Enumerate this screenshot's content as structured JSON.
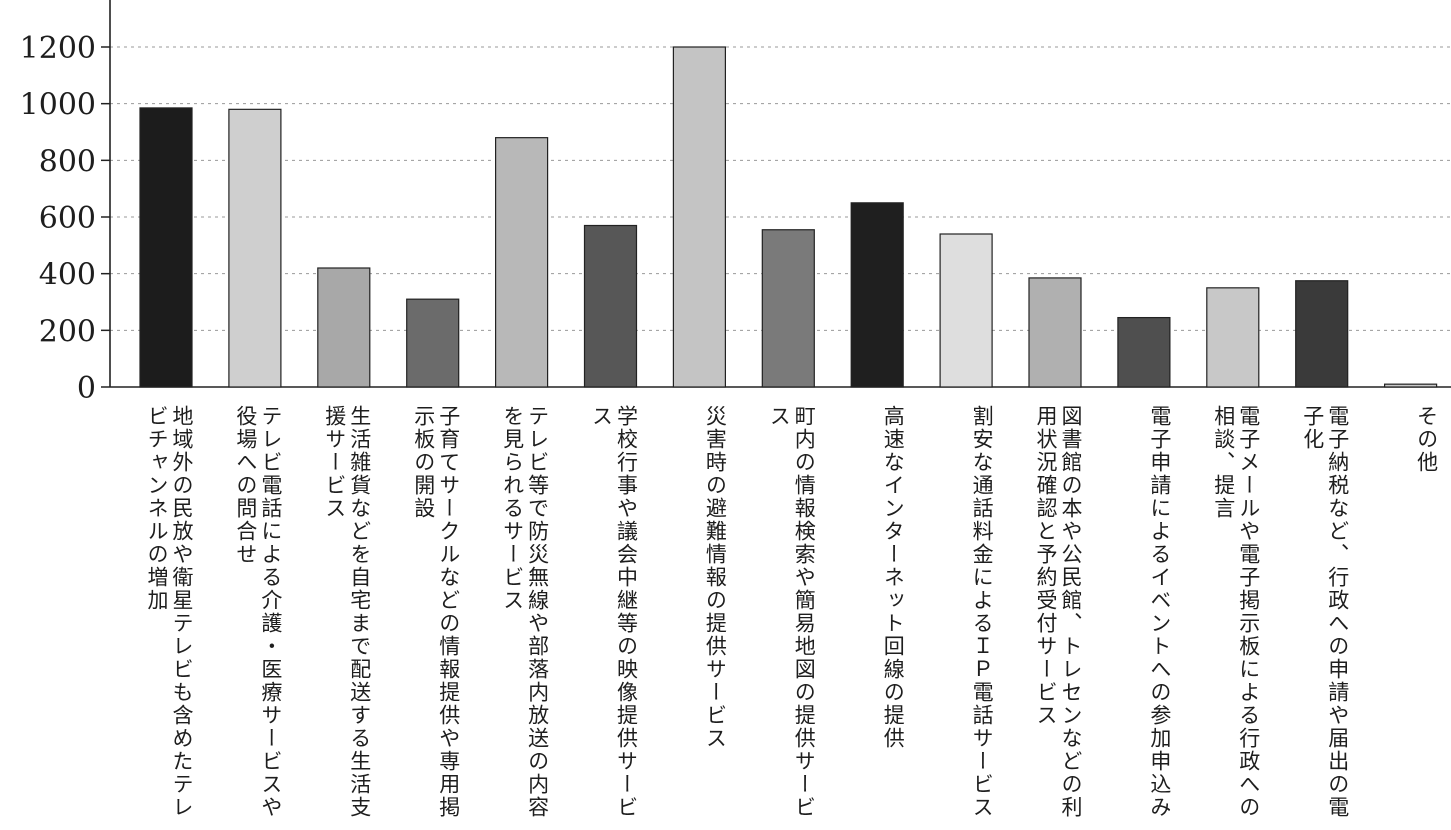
{
  "chart_data": {
    "type": "bar",
    "title": "",
    "xlabel": "",
    "ylabel": "",
    "ylim": [
      0,
      1200
    ],
    "yticks": [
      0,
      200,
      400,
      600,
      800,
      1000,
      1200
    ],
    "grid": true,
    "categories": [
      "地域外の民放や衛星テレビも含めたテレビチャンネルの増加",
      "テレビ電話による介護・医療サービスや役場への問合せ",
      "生活雑貨などを自宅まで配送する生活支援サービス",
      "子育てサークルなどの情報提供や専用掲示板の開設",
      "テレビ等で防災無線や部落内放送の内容を見られるサービス",
      "学校行事や議会中継等の映像提供サービス",
      "災害時の避難情報の提供サービス",
      "町内の情報検索や簡易地図の提供サービス",
      "高速なインターネット回線の提供",
      "割安な通話料金によるＩＰ電話サービス",
      "図書館の本や公民館、トレセンなどの利用状況確認と予約受付サービス",
      "電子申請によるイベントへの参加申込み",
      "電子メールや電子掲示板による行政への相談、提言",
      "電子納税など、行政への申請や届出の電子化",
      "その他"
    ],
    "values": [
      985,
      980,
      420,
      310,
      880,
      570,
      1200,
      555,
      650,
      540,
      385,
      245,
      350,
      375,
      10
    ],
    "bar_colors": [
      "#1c1c1c",
      "#cfcfcf",
      "#a8a8a8",
      "#6b6b6b",
      "#b8b8b8",
      "#575757",
      "#c4c4c4",
      "#7a7a7a",
      "#1f1f1f",
      "#dedede",
      "#b0b0b0",
      "#4f4f4f",
      "#c8c8c8",
      "#3a3a3a",
      "#c9c9c9"
    ]
  }
}
